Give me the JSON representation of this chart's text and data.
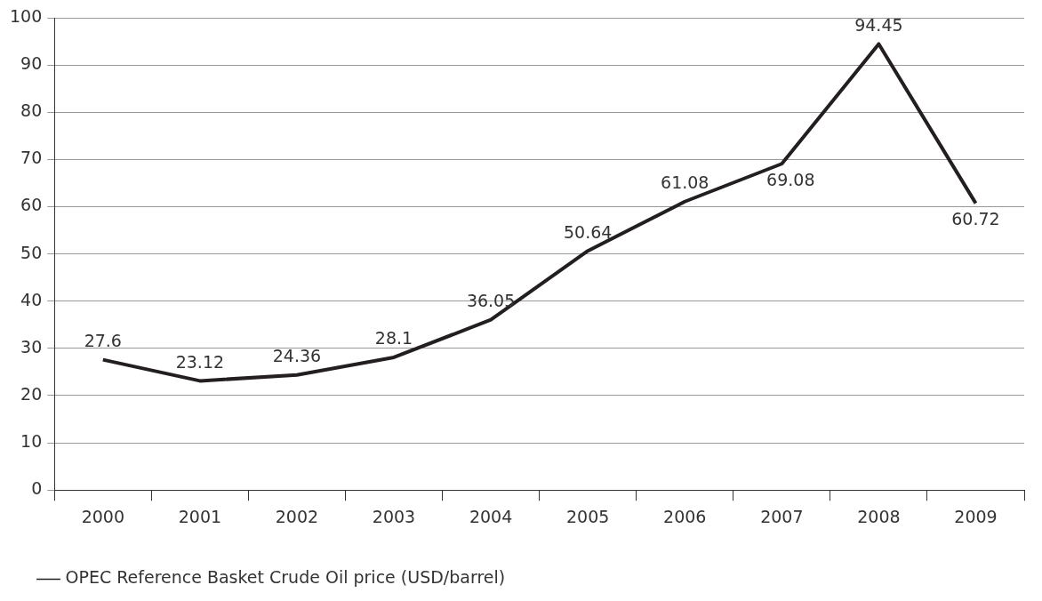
{
  "chart_data": {
    "type": "line",
    "categories": [
      "2000",
      "2001",
      "2002",
      "2003",
      "2004",
      "2005",
      "2006",
      "2007",
      "2008",
      "2009"
    ],
    "series": [
      {
        "name": "OPEC Reference Basket Crude Oil price (USD/barrel)",
        "color": "#231f20",
        "values": [
          27.6,
          23.12,
          24.36,
          28.1,
          36.05,
          50.64,
          61.08,
          69.08,
          94.45,
          60.72
        ]
      }
    ],
    "ylim": [
      0,
      100
    ],
    "yticks": [
      0,
      10,
      20,
      30,
      40,
      50,
      60,
      70,
      80,
      90,
      100
    ],
    "grid": "y",
    "legend": "bottom left",
    "data_labels": true,
    "marker": "none",
    "line_style": "solid"
  }
}
